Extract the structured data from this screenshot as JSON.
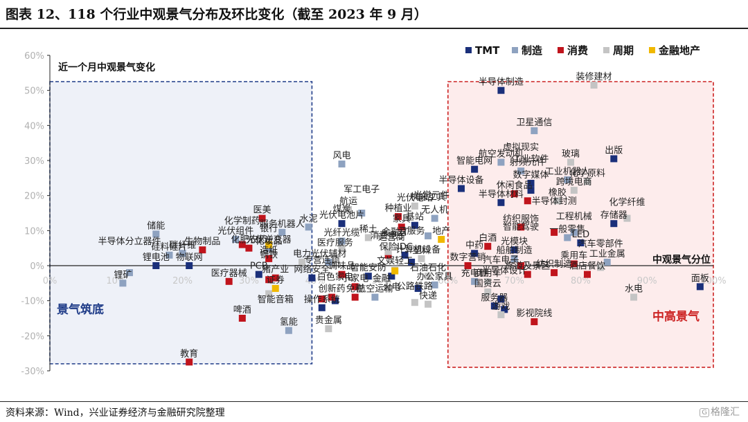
{
  "figure": {
    "title": "图表 12、118 个行业中观景气分布及环比变化（截至 2023 年 9 月）",
    "source": "资料来源：Wind，兴业证券经济与金融研究院整理",
    "watermark": "格隆汇",
    "watermark_icon": "logo-icon"
  },
  "chart_data": {
    "type": "scatter",
    "title": "",
    "xlabel": "中观景气分位",
    "ylabel": "近一个月中观景气变化",
    "x_ticks": [
      "0%",
      "10%",
      "20%",
      "30%",
      "40%",
      "50%",
      "60%",
      "70%",
      "80%",
      "90%",
      "100%"
    ],
    "y_ticks": [
      "60%",
      "50%",
      "40%",
      "30%",
      "20%",
      "10%",
      "0%",
      "-10%",
      "-20%",
      "-30%"
    ],
    "xlim": [
      0,
      100
    ],
    "ylim": [
      -30,
      60
    ],
    "legend_position": "top-right",
    "regions": [
      {
        "label": "景气筑底",
        "color": "#1f3c88",
        "fill": "#eef1f8",
        "x_range": [
          0,
          39.5
        ],
        "y_range": [
          -28,
          52.5
        ]
      },
      {
        "label": "中高景气",
        "color": "#cc2222",
        "fill": "#fdecec",
        "x_range": [
          60,
          100
        ],
        "y_range": [
          -29,
          52.5
        ]
      }
    ],
    "series": [
      {
        "name": "TMT",
        "color": "#1a2f7a",
        "points": [
          {
            "label": "半导体制造",
            "x": 68,
            "y": 50
          },
          {
            "label": "智能电网",
            "x": 64,
            "y": 27.5
          },
          {
            "label": "半导体设备",
            "x": 62,
            "y": 22
          },
          {
            "label": "数字媒体",
            "x": 72.5,
            "y": 23.5
          },
          {
            "label": "工业软件",
            "x": 72.5,
            "y": 21.5
          },
          {
            "label": "半导体材料",
            "x": 68,
            "y": 18
          },
          {
            "label": "出版",
            "x": 85,
            "y": 30.5
          },
          {
            "label": "存储器",
            "x": 85,
            "y": 12
          },
          {
            "label": "LED",
            "x": 80,
            "y": 6.5
          },
          {
            "label": "光模块",
            "x": 70,
            "y": 4.5
          },
          {
            "label": "中药",
            "x": 64,
            "y": 3.5
          },
          {
            "label": "面板",
            "x": 98,
            "y": -6
          },
          {
            "label": "光伏电池片",
            "x": 44,
            "y": 12
          },
          {
            "label": "基站",
            "x": 55,
            "y": 11.5
          },
          {
            "label": "IDC",
            "x": 53.5,
            "y": 3
          },
          {
            "label": "汽车电子",
            "x": 68,
            "y": -9.5
          },
          {
            "label": "服务器",
            "x": 67,
            "y": -11.5
          },
          {
            "label": "半导体设计",
            "x": 68.5,
            "y": -12.5
          },
          {
            "label": "锂电池",
            "x": 16,
            "y": 0
          },
          {
            "label": "物联网",
            "x": 21,
            "y": 0
          },
          {
            "label": "PCB",
            "x": 31.5,
            "y": -2.5
          },
          {
            "label": "网络安全",
            "x": 39.5,
            "y": -3.5
          },
          {
            "label": "智能安防",
            "x": 48,
            "y": -3
          },
          {
            "label": "运营商",
            "x": 51.5,
            "y": -3
          },
          {
            "label": "计算机设备",
            "x": 55.5,
            "y": -6.5
          },
          {
            "label": "白色家电",
            "x": 43,
            "y": -10
          },
          {
            "label": "操作系统",
            "x": 41,
            "y": -12
          },
          {
            "label": "云服务",
            "x": 54.5,
            "y": 1
          }
        ]
      },
      {
        "name": "制造",
        "color": "#8ea2c0",
        "points": [
          {
            "label": "卫星通信",
            "x": 73,
            "y": 38.5
          },
          {
            "label": "风电",
            "x": 44,
            "y": 29
          },
          {
            "label": "航空发动机",
            "x": 68,
            "y": 29.5
          },
          {
            "label": "虚拟现实",
            "x": 71,
            "y": 27
          },
          {
            "label": "工业机器人",
            "x": 78,
            "y": 24.5
          },
          {
            "label": "储能",
            "x": 16,
            "y": 9
          },
          {
            "label": "光伏组件",
            "x": 28,
            "y": 7.5
          },
          {
            "label": "服务机器人",
            "x": 35,
            "y": 9.5
          },
          {
            "label": "水泥",
            "x": 39,
            "y": 11
          },
          {
            "label": "光纤光缆",
            "x": 44,
            "y": 7
          },
          {
            "label": "军工电子",
            "x": 47,
            "y": 15
          },
          {
            "label": "无人机",
            "x": 58,
            "y": 13.5
          },
          {
            "label": "一般零售",
            "x": 78,
            "y": 8
          },
          {
            "label": "工程机械",
            "x": 79,
            "y": 9.5
          },
          {
            "label": "光伏逆变器",
            "x": 33,
            "y": 5
          },
          {
            "label": "硅料硅片",
            "x": 18,
            "y": 3
          },
          {
            "label": "碳纤维",
            "x": 20,
            "y": 3.5
          },
          {
            "label": "机床工具",
            "x": 57,
            "y": 8.5
          },
          {
            "label": "船舶制造",
            "x": 70,
            "y": 2
          },
          {
            "label": "锂矿",
            "x": 11,
            "y": -5
          },
          {
            "label": "半导体分立器件",
            "x": 12,
            "y": -2
          },
          {
            "label": "光伏辅材",
            "x": 42,
            "y": 1
          },
          {
            "label": "充电桩",
            "x": 64,
            "y": -4.5
          },
          {
            "label": "氢能",
            "x": 36,
            "y": -18.5
          },
          {
            "label": "工业金属",
            "x": 84,
            "y": 1
          },
          {
            "label": "航空运输",
            "x": 49,
            "y": -9
          },
          {
            "label": "办公家具",
            "x": 58,
            "y": -5.5
          }
        ]
      },
      {
        "name": "消费",
        "color": "#c0141c",
        "points": [
          {
            "label": "医美",
            "x": 32,
            "y": 13.5
          },
          {
            "label": "休闲食品",
            "x": 70,
            "y": 20.5
          },
          {
            "label": "射频元件",
            "x": 72,
            "y": 18.5
          },
          {
            "label": "纺织服饰",
            "x": 71,
            "y": 11
          },
          {
            "label": "生物制品",
            "x": 23,
            "y": 4.5
          },
          {
            "label": "化学制药",
            "x": 29,
            "y": 6
          },
          {
            "label": "家具",
            "x": 53,
            "y": 11
          },
          {
            "label": "种植业",
            "x": 52.5,
            "y": 14
          },
          {
            "label": "白酒",
            "x": 66,
            "y": 5.5
          },
          {
            "label": "半导体封测",
            "x": 76,
            "y": 9.5
          },
          {
            "label": "智能驾驶",
            "x": 71,
            "y": 0
          },
          {
            "label": "乘用车",
            "x": 79,
            "y": 0.5
          },
          {
            "label": "造纸",
            "x": 33,
            "y": 2
          },
          {
            "label": "医疗器械",
            "x": 27,
            "y": -4.5
          },
          {
            "label": "化妆品",
            "x": 33,
            "y": -4
          },
          {
            "label": "猪产业",
            "x": 34,
            "y": -3.5
          },
          {
            "label": "调味品",
            "x": 44,
            "y": -2.5
          },
          {
            "label": "创新药",
            "x": 42.5,
            "y": -9
          },
          {
            "label": "免税",
            "x": 46,
            "y": -9
          },
          {
            "label": "小家电",
            "x": 46,
            "y": -6
          },
          {
            "label": "啤酒",
            "x": 29,
            "y": -15
          },
          {
            "label": "教育",
            "x": 21,
            "y": -27.5
          },
          {
            "label": "影视院线",
            "x": 73,
            "y": -16
          },
          {
            "label": "旅游及景区",
            "x": 72,
            "y": -2.5
          },
          {
            "label": "酒店餐饮",
            "x": 81,
            "y": -2.5
          },
          {
            "label": "数字营销",
            "x": 63,
            "y": 0
          },
          {
            "label": "保险",
            "x": 51,
            "y": 3
          },
          {
            "label": "化肥农药",
            "x": 30,
            "y": 5
          },
          {
            "label": "纺织制造",
            "x": 76,
            "y": -2
          },
          {
            "label": "专营连锁",
            "x": 41,
            "y": -9.5
          }
        ]
      },
      {
        "name": "周期",
        "color": "#c4c4c4",
        "points": [
          {
            "label": "装修建材",
            "x": 82,
            "y": 51.5
          },
          {
            "label": "玻璃",
            "x": 78.5,
            "y": 29.5
          },
          {
            "label": "化学原料",
            "x": 81,
            "y": 24
          },
          {
            "label": "跨境电商",
            "x": 79,
            "y": 21.5
          },
          {
            "label": "橡胶",
            "x": 76.5,
            "y": 18.5
          },
          {
            "label": "化学纤维",
            "x": 87,
            "y": 13.5
          },
          {
            "label": "稀土",
            "x": 48,
            "y": 8
          },
          {
            "label": "煤炭",
            "x": 44,
            "y": 5
          },
          {
            "label": "消费电子",
            "x": 51,
            "y": 4
          },
          {
            "label": "石油石化",
            "x": 57,
            "y": -3
          },
          {
            "label": "塑料",
            "x": 56,
            "y": 2
          },
          {
            "label": "钢铁",
            "x": 33,
            "y": -8
          },
          {
            "label": "贵金属",
            "x": 42,
            "y": -18
          },
          {
            "label": "国资云",
            "x": 66,
            "y": -7.5
          },
          {
            "label": "公路铁路",
            "x": 55,
            "y": -10.5
          },
          {
            "label": "快递",
            "x": 57,
            "y": -11
          },
          {
            "label": "水电",
            "x": 88,
            "y": -9
          },
          {
            "label": "汽车零部件",
            "x": 83,
            "y": -0.5
          },
          {
            "label": "航运",
            "x": 45,
            "y": 16
          },
          {
            "label": "游戏",
            "x": 68,
            "y": -14
          },
          {
            "label": "商用车",
            "x": 66,
            "y": -4.5
          },
          {
            "label": "光伏电站",
            "x": 55,
            "y": 17
          },
          {
            "label": "电力",
            "x": 38,
            "y": 1
          },
          {
            "label": "文娱轻工",
            "x": 52,
            "y": -1
          }
        ]
      },
      {
        "name": "金融地产",
        "color": "#f0b800",
        "points": [
          {
            "label": "银行",
            "x": 33,
            "y": 6
          },
          {
            "label": "地产",
            "x": 59,
            "y": 7.5
          },
          {
            "label": "证券",
            "x": 34,
            "y": -6.5
          },
          {
            "label": "金融IT",
            "x": 52,
            "y": -1.5
          }
        ]
      }
    ],
    "point_labels": [
      {
        "text": "半导体制造"
      },
      {
        "text": "装修建材"
      },
      {
        "text": "卫星通信"
      },
      {
        "text": "风电"
      },
      {
        "text": "航空发动机"
      },
      {
        "text": "玻璃"
      },
      {
        "text": "出版"
      },
      {
        "text": "半导体设备"
      },
      {
        "text": "智能电网"
      },
      {
        "text": "工业机器人"
      },
      {
        "text": "化学原料"
      },
      {
        "text": "数字媒体"
      },
      {
        "text": "跨境电商"
      },
      {
        "text": "航运"
      },
      {
        "text": "工业软件"
      },
      {
        "text": "休闲食品"
      },
      {
        "text": "无人机"
      },
      {
        "text": "半导体材料"
      },
      {
        "text": "射频元件"
      },
      {
        "text": "橡胶"
      },
      {
        "text": "军工电子"
      },
      {
        "text": "光伏电站"
      },
      {
        "text": "医美"
      },
      {
        "text": "水泥"
      },
      {
        "text": "储能"
      },
      {
        "text": "服务机器人"
      },
      {
        "text": "光纤光缆"
      },
      {
        "text": "种植业"
      },
      {
        "text": "存储器"
      },
      {
        "text": "化学纤维"
      },
      {
        "text": "光伏逆变器"
      },
      {
        "text": "家具"
      },
      {
        "text": "地产"
      },
      {
        "text": "纺织服饰"
      },
      {
        "text": "一般零售"
      },
      {
        "text": "光伏组件"
      },
      {
        "text": "光伏电池片"
      },
      {
        "text": "稀土"
      },
      {
        "text": "基站"
      },
      {
        "text": "光学元件"
      },
      {
        "text": "虚拟现实"
      },
      {
        "text": "工程机械"
      },
      {
        "text": "化学制药"
      },
      {
        "text": "机床工具"
      },
      {
        "text": "白酒"
      },
      {
        "text": "硅料硅片"
      },
      {
        "text": "生物制品"
      },
      {
        "text": "银行"
      },
      {
        "text": "半导体封测"
      },
      {
        "text": "LED"
      },
      {
        "text": "中药"
      },
      {
        "text": "煤炭"
      },
      {
        "text": "保险"
      },
      {
        "text": "IDC"
      },
      {
        "text": "碳纤维"
      },
      {
        "text": "造纸"
      },
      {
        "text": "光伏辅材"
      },
      {
        "text": "光模块"
      },
      {
        "text": "化肥农药"
      },
      {
        "text": "医疗服务"
      },
      {
        "text": "消费电子"
      },
      {
        "text": "云服务"
      },
      {
        "text": "塑料"
      },
      {
        "text": "船舶制造"
      },
      {
        "text": "工业金属"
      },
      {
        "text": "数字营销"
      },
      {
        "text": "乘用车"
      },
      {
        "text": "汽车零部件"
      },
      {
        "text": "锂电池"
      },
      {
        "text": "物联网"
      },
      {
        "text": "电力"
      },
      {
        "text": "文娱轻工"
      },
      {
        "text": "智能驾驶"
      },
      {
        "text": "面板"
      },
      {
        "text": "半导体分立器件"
      },
      {
        "text": "PCB"
      },
      {
        "text": "猪产业"
      },
      {
        "text": "网络安全"
      },
      {
        "text": "智能安防"
      },
      {
        "text": "充电桩"
      },
      {
        "text": "纺织制造"
      },
      {
        "text": "酒店餐饮"
      },
      {
        "text": "锂矿"
      },
      {
        "text": "化妆品"
      },
      {
        "text": "调味品"
      },
      {
        "text": "石油石化"
      },
      {
        "text": "金融IT"
      },
      {
        "text": "商用车"
      },
      {
        "text": "旅游及景区"
      },
      {
        "text": "医疗器械"
      },
      {
        "text": "证券"
      },
      {
        "text": "创新药"
      },
      {
        "text": "小家电"
      },
      {
        "text": "运营商"
      },
      {
        "text": "办公家具"
      },
      {
        "text": "水电"
      },
      {
        "text": "专营连锁"
      },
      {
        "text": "免税"
      },
      {
        "text": "金融"
      },
      {
        "text": "计算机设备"
      },
      {
        "text": "国资云"
      },
      {
        "text": "汽车电子"
      },
      {
        "text": "钢铁"
      },
      {
        "text": "白色家电"
      },
      {
        "text": "航空运输"
      },
      {
        "text": "火电"
      },
      {
        "text": "快递"
      },
      {
        "text": "服务器"
      },
      {
        "text": "半导体设计"
      },
      {
        "text": "公路铁路"
      },
      {
        "text": "啤酒"
      },
      {
        "text": "智能音箱"
      },
      {
        "text": "操作系统"
      },
      {
        "text": "游戏"
      },
      {
        "text": "影视院线"
      },
      {
        "text": "氢能"
      },
      {
        "text": "贵金属"
      },
      {
        "text": "教育"
      }
    ]
  }
}
